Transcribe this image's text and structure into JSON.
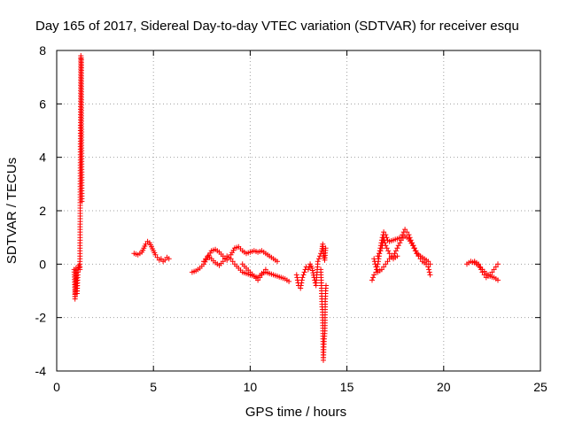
{
  "chart_data": {
    "type": "scatter",
    "title": "Day 165 of 2017, Sidereal Day-to-day VTEC variation (SDTVAR) for receiver esqu",
    "xlabel": "GPS time / hours",
    "ylabel": "SDTVAR / TECUs",
    "xlim": [
      0,
      25
    ],
    "ylim": [
      -4,
      8
    ],
    "x_ticks": [
      0,
      5,
      10,
      15,
      20,
      25
    ],
    "y_ticks": [
      -4,
      -2,
      0,
      2,
      4,
      6,
      8
    ],
    "x_tick_labels": [
      "0",
      "5",
      "10",
      "15",
      "20",
      "25"
    ],
    "y_tick_labels": [
      "-4",
      "-2",
      "0",
      "2",
      "4",
      "6",
      "8"
    ],
    "grid": true,
    "marker": "plus",
    "color": "#ff0000",
    "series": [
      {
        "name": "SDTVAR",
        "segments": [
          [
            [
              0.9,
              -0.2
            ],
            [
              0.95,
              -1.05
            ],
            [
              0.95,
              -1.3
            ],
            [
              1.0,
              -0.15
            ],
            [
              1.05,
              -1.1
            ],
            [
              1.1,
              -0.2
            ],
            [
              1.15,
              -0.05
            ],
            [
              1.2,
              -0.2
            ],
            [
              1.25,
              7.8
            ],
            [
              1.27,
              7.65
            ],
            [
              1.3,
              2.35
            ]
          ],
          [
            [
              4.0,
              0.4
            ],
            [
              4.2,
              0.35
            ],
            [
              4.4,
              0.45
            ],
            [
              4.5,
              0.6
            ],
            [
              4.6,
              0.75
            ],
            [
              4.7,
              0.85
            ],
            [
              4.8,
              0.8
            ],
            [
              4.9,
              0.65
            ],
            [
              5.0,
              0.5
            ],
            [
              5.1,
              0.35
            ],
            [
              5.2,
              0.25
            ],
            [
              5.3,
              0.15
            ],
            [
              5.4,
              0.2
            ],
            [
              5.5,
              0.1
            ],
            [
              5.6,
              0.15
            ],
            [
              5.7,
              0.25
            ],
            [
              5.8,
              0.2
            ]
          ],
          [
            [
              7.0,
              -0.3
            ],
            [
              7.2,
              -0.25
            ],
            [
              7.4,
              -0.15
            ],
            [
              7.6,
              0.0
            ],
            [
              7.8,
              0.25
            ],
            [
              8.0,
              0.5
            ],
            [
              8.2,
              0.55
            ],
            [
              8.4,
              0.45
            ],
            [
              8.6,
              0.3
            ],
            [
              8.8,
              0.15
            ],
            [
              9.0,
              0.35
            ],
            [
              9.2,
              0.6
            ],
            [
              9.4,
              0.65
            ],
            [
              9.6,
              0.5
            ],
            [
              9.8,
              0.4
            ],
            [
              10.0,
              0.45
            ],
            [
              10.2,
              0.5
            ],
            [
              10.4,
              0.45
            ],
            [
              10.6,
              0.5
            ],
            [
              10.8,
              0.4
            ],
            [
              11.0,
              0.3
            ],
            [
              11.2,
              0.2
            ],
            [
              11.4,
              0.1
            ]
          ],
          [
            [
              7.6,
              0.1
            ],
            [
              7.8,
              0.3
            ],
            [
              8.0,
              0.2
            ],
            [
              8.2,
              0.05
            ],
            [
              8.4,
              -0.05
            ],
            [
              8.6,
              0.1
            ],
            [
              8.8,
              0.3
            ],
            [
              9.0,
              0.2
            ],
            [
              9.2,
              0.0
            ],
            [
              9.4,
              -0.15
            ],
            [
              9.6,
              -0.3
            ],
            [
              9.8,
              -0.35
            ],
            [
              10.0,
              -0.4
            ],
            [
              10.2,
              -0.45
            ],
            [
              10.4,
              -0.5
            ],
            [
              10.6,
              -0.35
            ],
            [
              10.8,
              -0.3
            ],
            [
              11.0,
              -0.35
            ],
            [
              11.2,
              -0.4
            ],
            [
              11.4,
              -0.45
            ],
            [
              11.6,
              -0.5
            ],
            [
              11.8,
              -0.55
            ],
            [
              12.0,
              -0.65
            ]
          ],
          [
            [
              9.6,
              0.0
            ],
            [
              9.8,
              -0.15
            ],
            [
              10.0,
              -0.3
            ],
            [
              10.2,
              -0.45
            ],
            [
              10.4,
              -0.6
            ],
            [
              10.6,
              -0.4
            ],
            [
              10.8,
              -0.2
            ]
          ],
          [
            [
              12.4,
              -0.4
            ],
            [
              12.5,
              -0.8
            ],
            [
              12.6,
              -0.9
            ],
            [
              12.7,
              -0.5
            ],
            [
              12.8,
              -0.3
            ],
            [
              12.9,
              -0.1
            ],
            [
              13.0,
              -0.2
            ],
            [
              13.1,
              0.0
            ],
            [
              13.2,
              -0.15
            ],
            [
              13.3,
              -0.5
            ],
            [
              13.4,
              -0.8
            ],
            [
              13.5,
              0.1
            ],
            [
              13.6,
              0.3
            ],
            [
              13.7,
              0.5
            ],
            [
              13.75,
              0.75
            ],
            [
              13.8,
              0.3
            ],
            [
              13.85,
              0.15
            ],
            [
              13.9,
              0.6
            ]
          ],
          [
            [
              13.65,
              -0.2
            ],
            [
              13.7,
              -1.2
            ],
            [
              13.72,
              -1.6
            ],
            [
              13.74,
              -1.8
            ],
            [
              13.76,
              -2.5
            ],
            [
              13.78,
              -3.6
            ],
            [
              13.8,
              -3.2
            ],
            [
              13.82,
              -2.9
            ],
            [
              13.84,
              -2.7
            ],
            [
              13.86,
              -2.5
            ],
            [
              13.88,
              -1.4
            ],
            [
              13.9,
              -1.0
            ],
            [
              13.92,
              -0.8
            ]
          ],
          [
            [
              16.3,
              -0.6
            ],
            [
              16.4,
              -0.4
            ],
            [
              16.5,
              -0.3
            ],
            [
              16.6,
              0.0
            ],
            [
              16.7,
              0.5
            ],
            [
              16.8,
              0.9
            ],
            [
              16.9,
              1.2
            ],
            [
              17.0,
              1.1
            ],
            [
              17.1,
              0.9
            ],
            [
              17.2,
              0.85
            ],
            [
              17.4,
              0.9
            ],
            [
              17.6,
              0.95
            ],
            [
              17.8,
              1.0
            ],
            [
              18.0,
              1.3
            ],
            [
              18.1,
              1.2
            ],
            [
              18.2,
              1.1
            ],
            [
              18.3,
              0.9
            ],
            [
              18.5,
              0.6
            ],
            [
              18.7,
              0.3
            ],
            [
              18.9,
              0.1
            ],
            [
              19.1,
              0.0
            ],
            [
              19.2,
              -0.1
            ],
            [
              19.3,
              -0.4
            ]
          ],
          [
            [
              16.4,
              0.2
            ],
            [
              16.5,
              -0.1
            ],
            [
              16.6,
              -0.3
            ],
            [
              16.8,
              -0.2
            ],
            [
              17.0,
              0.0
            ],
            [
              17.2,
              0.2
            ],
            [
              17.4,
              0.3
            ],
            [
              17.6,
              0.6
            ],
            [
              17.8,
              0.9
            ],
            [
              18.0,
              1.05
            ],
            [
              18.2,
              0.95
            ],
            [
              18.4,
              0.7
            ],
            [
              18.6,
              0.4
            ],
            [
              18.8,
              0.3
            ],
            [
              19.0,
              0.2
            ],
            [
              19.2,
              0.1
            ],
            [
              19.3,
              0.0
            ]
          ],
          [
            [
              16.6,
              0.3
            ],
            [
              16.8,
              0.6
            ],
            [
              16.9,
              1.0
            ],
            [
              17.0,
              0.7
            ],
            [
              17.2,
              0.4
            ],
            [
              17.4,
              0.2
            ],
            [
              17.6,
              0.3
            ]
          ],
          [
            [
              21.2,
              0.0
            ],
            [
              21.4,
              0.1
            ],
            [
              21.6,
              0.05
            ],
            [
              21.8,
              -0.05
            ],
            [
              22.0,
              -0.2
            ],
            [
              22.2,
              -0.35
            ],
            [
              22.4,
              -0.45
            ],
            [
              22.6,
              -0.5
            ],
            [
              22.8,
              -0.6
            ]
          ],
          [
            [
              21.6,
              0.1
            ],
            [
              21.8,
              0.0
            ],
            [
              22.0,
              -0.3
            ],
            [
              22.2,
              -0.5
            ],
            [
              22.4,
              -0.4
            ],
            [
              22.6,
              -0.2
            ],
            [
              22.8,
              0.0
            ]
          ]
        ]
      }
    ]
  }
}
